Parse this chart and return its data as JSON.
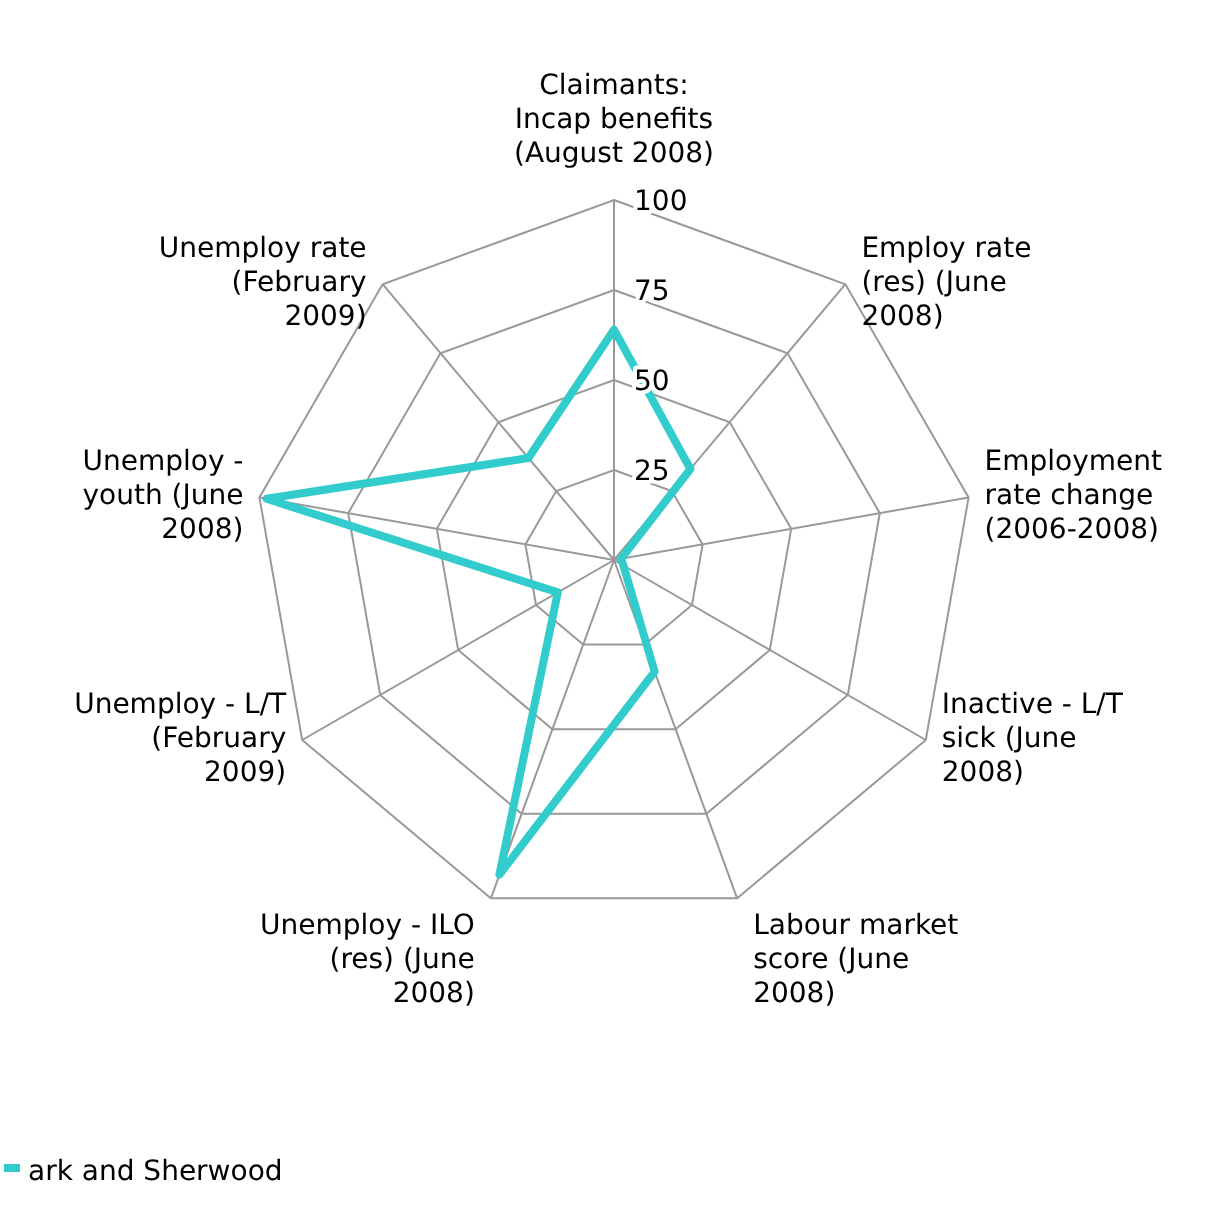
{
  "chart_data": {
    "type": "radar",
    "categories": [
      "Claimants: Incap benefits (August 2008)",
      "Employ rate (res) (June 2008)",
      "Employment rate change (2006-2008)",
      "Inactive - L/T sick (June 2008)",
      "Labour market score (June 2008)",
      "Unemploy - ILO (res) (June 2008)",
      "Unemploy - L/T (February 2009)",
      "Unemploy - youth (June 2008)",
      "Unemploy rate (February 2009)"
    ],
    "series": [
      {
        "name": "ark and Sherwood",
        "color": "#33cccc",
        "values": [
          64,
          33,
          2,
          3,
          33,
          93,
          18,
          98,
          37
        ]
      }
    ],
    "ylim": [
      0,
      100
    ],
    "yticks": [
      25,
      50,
      75,
      100
    ],
    "legend": "bottom left"
  }
}
